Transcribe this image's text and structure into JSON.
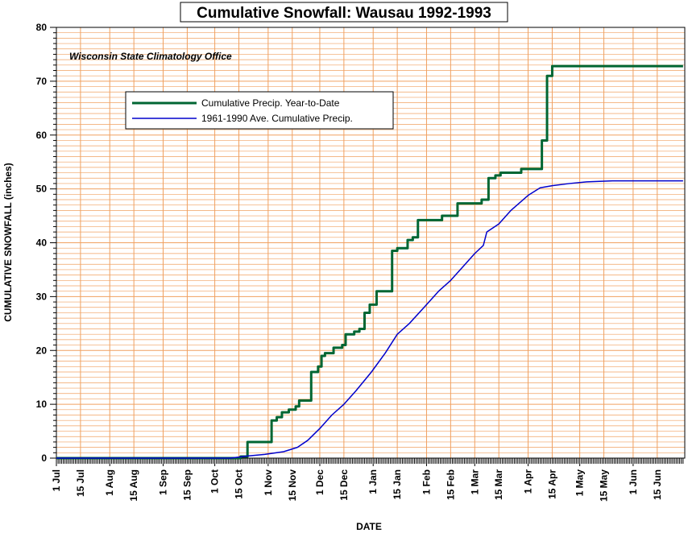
{
  "chart_data": {
    "type": "line",
    "title": "Cumulative Snowfall: Wausau 1992-1993",
    "subtitle": "Wisconsin State Climatology Office",
    "xlabel": "DATE",
    "ylabel": "CUMULATIVE SNOWFALL (inches)",
    "ylim": [
      0,
      80
    ],
    "yticks": [
      "0",
      "10",
      "20",
      "30",
      "40",
      "50",
      "60",
      "70",
      "80"
    ],
    "xlim": [
      "1992-07-01",
      "1993-06-30"
    ],
    "xticks": [
      {
        "label": "1 Jul",
        "date": "1992-07-01"
      },
      {
        "label": "15 Jul",
        "date": "1992-07-15"
      },
      {
        "label": "1 Aug",
        "date": "1992-08-01"
      },
      {
        "label": "15 Aug",
        "date": "1992-08-15"
      },
      {
        "label": "1 Sep",
        "date": "1992-09-01"
      },
      {
        "label": "15 Sep",
        "date": "1992-09-15"
      },
      {
        "label": "1 Oct",
        "date": "1992-10-01"
      },
      {
        "label": "15 Oct",
        "date": "1992-10-15"
      },
      {
        "label": "1 Nov",
        "date": "1992-11-01"
      },
      {
        "label": "15 Nov",
        "date": "1992-11-15"
      },
      {
        "label": "1 Dec",
        "date": "1992-12-01"
      },
      {
        "label": "15 Dec",
        "date": "1992-12-15"
      },
      {
        "label": "1 Jan",
        "date": "1993-01-01"
      },
      {
        "label": "15 Jan",
        "date": "1993-01-15"
      },
      {
        "label": "1 Feb",
        "date": "1993-02-01"
      },
      {
        "label": "15 Feb",
        "date": "1993-02-15"
      },
      {
        "label": "1 Mar",
        "date": "1993-03-01"
      },
      {
        "label": "15 Mar",
        "date": "1993-03-15"
      },
      {
        "label": "1 Apr",
        "date": "1993-04-01"
      },
      {
        "label": "15 Apr",
        "date": "1993-04-15"
      },
      {
        "label": "1 May",
        "date": "1993-05-01"
      },
      {
        "label": "15 May",
        "date": "1993-05-15"
      },
      {
        "label": "1 Jun",
        "date": "1993-06-01"
      },
      {
        "label": "15 Jun",
        "date": "1993-06-15"
      }
    ],
    "grid": true,
    "legend_position": "upper-left",
    "colors": {
      "grid": "#f0a060",
      "series1": "#006633",
      "series2": "#0000cc"
    },
    "series": [
      {
        "name": "Cumulative Precip. Year-to-Date",
        "step": true,
        "points": [
          [
            "1992-07-01",
            0
          ],
          [
            "1992-10-16",
            0.3
          ],
          [
            "1992-10-20",
            3.0
          ],
          [
            "1992-11-03",
            7.0
          ],
          [
            "1992-11-06",
            7.6
          ],
          [
            "1992-11-09",
            8.5
          ],
          [
            "1992-11-13",
            9.0
          ],
          [
            "1992-11-17",
            9.6
          ],
          [
            "1992-11-19",
            10.7
          ],
          [
            "1992-11-26",
            16.0
          ],
          [
            "1992-11-30",
            17.0
          ],
          [
            "1992-12-02",
            19.0
          ],
          [
            "1992-12-04",
            19.5
          ],
          [
            "1992-12-09",
            20.5
          ],
          [
            "1992-12-14",
            21.0
          ],
          [
            "1992-12-16",
            23.0
          ],
          [
            "1992-12-21",
            23.5
          ],
          [
            "1992-12-24",
            24.0
          ],
          [
            "1992-12-27",
            27.0
          ],
          [
            "1992-12-30",
            28.5
          ],
          [
            "1993-01-03",
            31.0
          ],
          [
            "1993-01-12",
            38.5
          ],
          [
            "1993-01-15",
            39.0
          ],
          [
            "1993-01-21",
            40.5
          ],
          [
            "1993-01-24",
            41.0
          ],
          [
            "1993-01-27",
            44.2
          ],
          [
            "1993-02-10",
            45.0
          ],
          [
            "1993-02-19",
            47.3
          ],
          [
            "1993-03-05",
            48.0
          ],
          [
            "1993-03-09",
            52.0
          ],
          [
            "1993-03-13",
            52.5
          ],
          [
            "1993-03-16",
            53.0
          ],
          [
            "1993-03-28",
            53.7
          ],
          [
            "1993-04-09",
            59.0
          ],
          [
            "1993-04-12",
            71.0
          ],
          [
            "1993-04-15",
            72.8
          ],
          [
            "1993-06-30",
            72.8
          ]
        ]
      },
      {
        "name": "1961-1990 Ave. Cumulative Precip.",
        "step": false,
        "points": [
          [
            "1992-07-01",
            0
          ],
          [
            "1992-10-10",
            0
          ],
          [
            "1992-10-20",
            0.4
          ],
          [
            "1992-10-30",
            0.7
          ],
          [
            "1992-11-10",
            1.2
          ],
          [
            "1992-11-18",
            2.0
          ],
          [
            "1992-11-24",
            3.3
          ],
          [
            "1992-12-01",
            5.5
          ],
          [
            "1992-12-08",
            8.0
          ],
          [
            "1992-12-15",
            10.0
          ],
          [
            "1992-12-22",
            12.5
          ],
          [
            "1992-12-31",
            16.0
          ],
          [
            "1993-01-08",
            19.5
          ],
          [
            "1993-01-15",
            23.0
          ],
          [
            "1993-01-22",
            25.0
          ],
          [
            "1993-02-01",
            28.5
          ],
          [
            "1993-02-08",
            31.0
          ],
          [
            "1993-02-15",
            33.0
          ],
          [
            "1993-02-22",
            35.5
          ],
          [
            "1993-03-01",
            38.0
          ],
          [
            "1993-03-06",
            39.5
          ],
          [
            "1993-03-08",
            42.0
          ],
          [
            "1993-03-15",
            43.5
          ],
          [
            "1993-03-22",
            46.0
          ],
          [
            "1993-04-01",
            48.8
          ],
          [
            "1993-04-08",
            50.2
          ],
          [
            "1993-04-15",
            50.6
          ],
          [
            "1993-04-25",
            51.0
          ],
          [
            "1993-05-05",
            51.3
          ],
          [
            "1993-05-20",
            51.5
          ],
          [
            "1993-06-30",
            51.5
          ]
        ]
      }
    ]
  }
}
